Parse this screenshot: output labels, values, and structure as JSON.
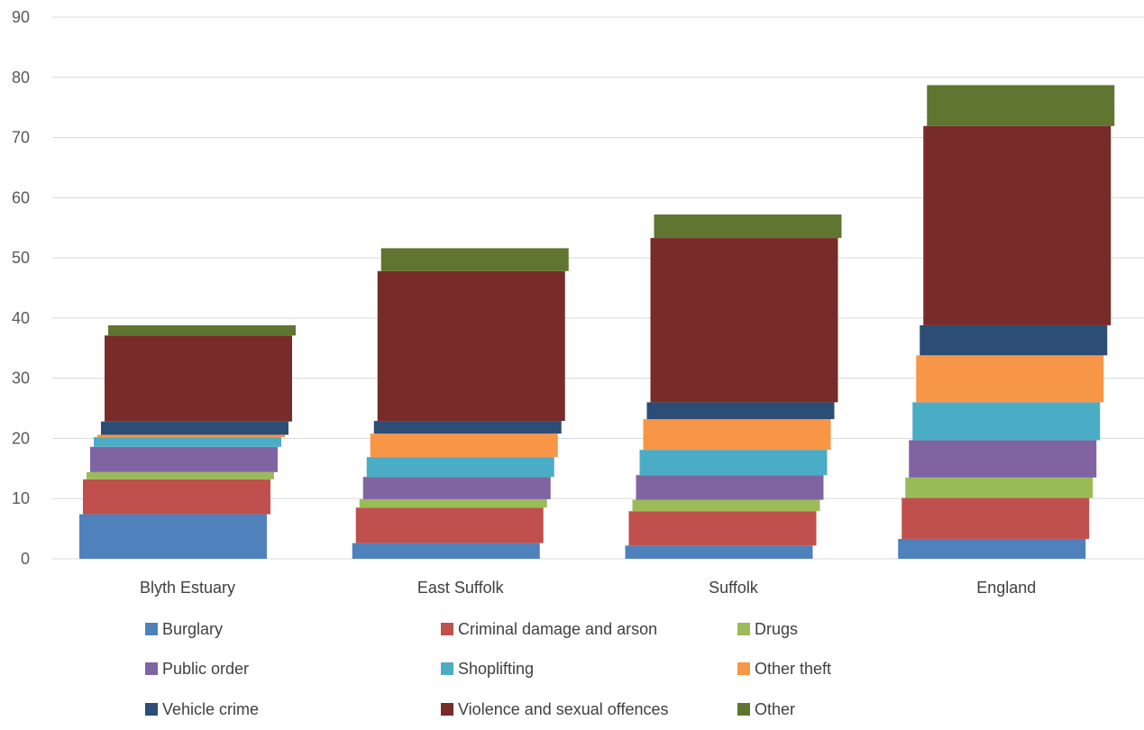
{
  "chart_data": {
    "type": "bar",
    "stacked": true,
    "categories": [
      "Blyth Estuary",
      "East Suffolk",
      "Suffolk",
      "England"
    ],
    "ylim": [
      0,
      90
    ],
    "yticks": [
      0,
      10,
      20,
      30,
      40,
      50,
      60,
      70,
      80,
      90
    ],
    "grid": true,
    "legend_position": "bottom",
    "series": [
      {
        "name": "Burglary",
        "color": "#4F81BD",
        "values": [
          7.4,
          2.6,
          2.2,
          3.3
        ]
      },
      {
        "name": "Criminal damage and arson",
        "color": "#C0504D",
        "values": [
          5.8,
          5.9,
          5.7,
          6.8
        ]
      },
      {
        "name": "Drugs",
        "color": "#9BBB59",
        "values": [
          1.2,
          1.4,
          1.9,
          3.4
        ]
      },
      {
        "name": "Public order",
        "color": "#8064A2",
        "values": [
          4.2,
          3.7,
          4.1,
          6.2
        ]
      },
      {
        "name": "Shoplifting",
        "color": "#4BACC6",
        "values": [
          1.6,
          3.3,
          4.2,
          6.3
        ]
      },
      {
        "name": "Other theft",
        "color": "#F79646",
        "values": [
          0.4,
          3.9,
          5.1,
          7.8
        ]
      },
      {
        "name": "Vehicle crime",
        "color": "#2C4D75",
        "values": [
          2.2,
          2.1,
          2.8,
          5.0
        ]
      },
      {
        "name": "Violence and sexual offences",
        "color": "#772C2A",
        "values": [
          14.3,
          24.9,
          27.3,
          33.1
        ]
      },
      {
        "name": "Other",
        "color": "#5F7530",
        "values": [
          1.7,
          3.8,
          3.9,
          6.8
        ]
      }
    ]
  }
}
